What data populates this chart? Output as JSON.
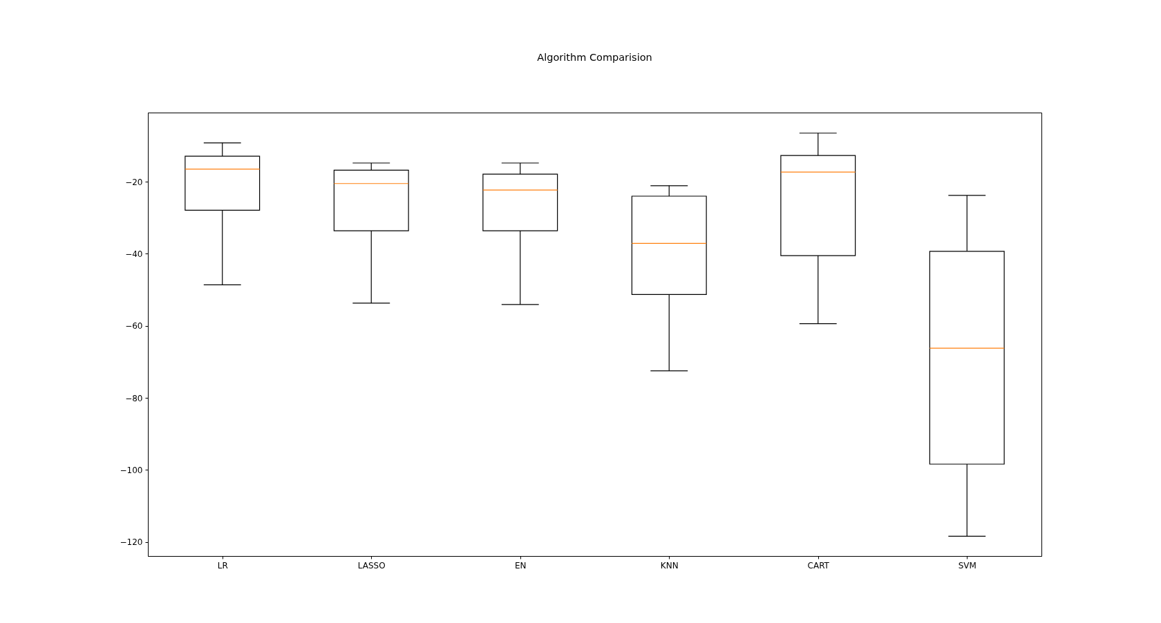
{
  "chart_data": {
    "type": "box",
    "title": "Algorithm Comparision",
    "categories": [
      "LR",
      "LASSO",
      "EN",
      "KNN",
      "CART",
      "SVM"
    ],
    "boxes": [
      {
        "low": -48.6,
        "q1": -27.9,
        "median": -16.5,
        "q3": -12.9,
        "high": -9.2
      },
      {
        "low": -53.7,
        "q1": -33.6,
        "median": -20.5,
        "q3": -16.8,
        "high": -14.8
      },
      {
        "low": -54.1,
        "q1": -33.6,
        "median": -22.3,
        "q3": -17.9,
        "high": -14.8
      },
      {
        "low": -72.5,
        "q1": -51.3,
        "median": -37.1,
        "q3": -24.0,
        "high": -21.1
      },
      {
        "low": -59.4,
        "q1": -40.5,
        "median": -17.3,
        "q3": -12.7,
        "high": -6.5
      },
      {
        "low": -118.4,
        "q1": -98.4,
        "median": -66.2,
        "q3": -39.3,
        "high": -23.8
      }
    ],
    "ylim": [
      -123.9,
      -0.8
    ],
    "yticks": [
      -120,
      -100,
      -80,
      -60,
      -40,
      -20
    ]
  }
}
